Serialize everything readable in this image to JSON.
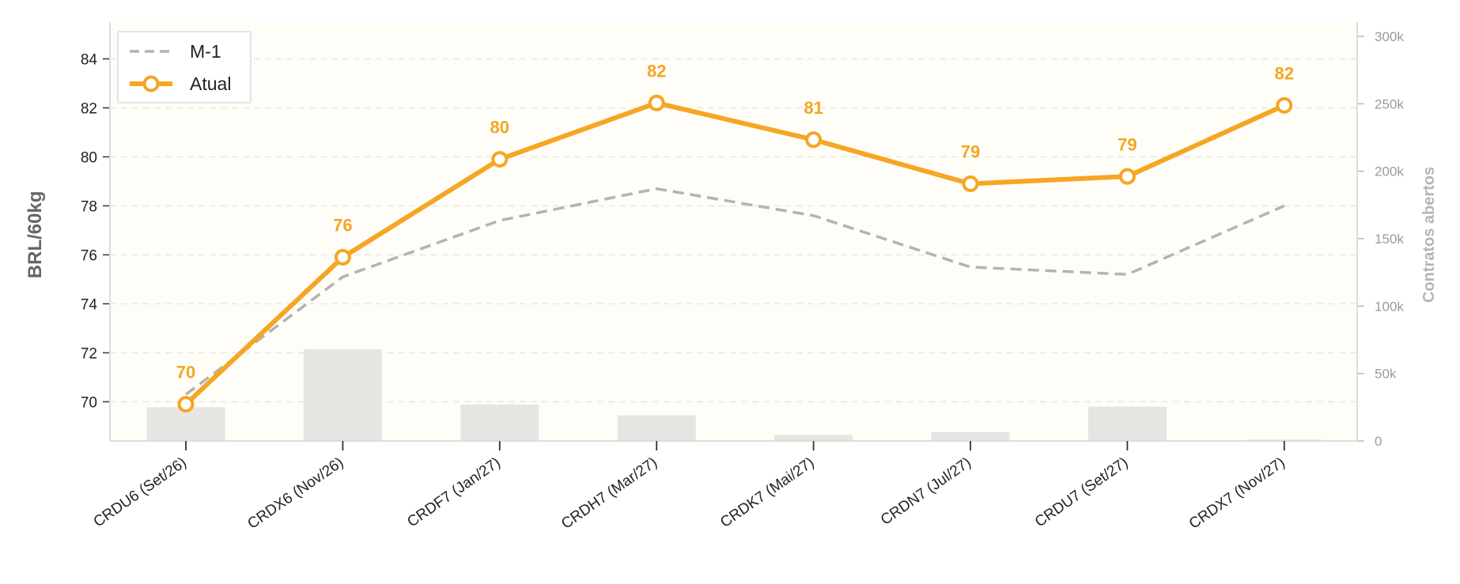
{
  "chart_data": {
    "type": "line",
    "categories": [
      "CRDU6 (Set/26)",
      "CRDX6 (Nov/26)",
      "CRDF7 (Jan/27)",
      "CRDH7 (Mar/27)",
      "CRDK7 (Mai/27)",
      "CRDN7 (Jul/27)",
      "CRDU7 (Set/27)",
      "CRDX7 (Nov/27)"
    ],
    "series": [
      {
        "name": "M-1",
        "type": "line",
        "style": "dashed",
        "color": "#b3b3b3",
        "values": [
          70.3,
          75.1,
          77.4,
          78.7,
          77.6,
          75.5,
          75.2,
          78.0
        ]
      },
      {
        "name": "Atual",
        "type": "line",
        "style": "solid-with-markers",
        "color": "#f5a623",
        "values": [
          69.9,
          75.9,
          79.9,
          82.2,
          80.7,
          78.9,
          79.2,
          82.1
        ],
        "data_labels": [
          "70",
          "76",
          "80",
          "82",
          "81",
          "79",
          "79",
          "82"
        ]
      },
      {
        "name": "Contratos abertos",
        "type": "bar",
        "axis": "right",
        "color": "#e6e5e1",
        "values": [
          25000,
          68000,
          27000,
          19000,
          4500,
          6500,
          25500,
          1000
        ]
      }
    ],
    "ylabel": "BRL/60kg",
    "y2label": "Contratos abertos",
    "ylim": [
      68.4,
      85.5
    ],
    "y2lim": [
      0,
      300000
    ],
    "yticks": [
      "70",
      "72",
      "74",
      "76",
      "78",
      "80",
      "82",
      "84"
    ],
    "y2ticks": [
      "0",
      "50k",
      "100k",
      "150k",
      "200k",
      "250k",
      "300k"
    ],
    "grid": "horizontal dashed",
    "legend_position": "top-left"
  },
  "colors": {
    "accent": "#f5a623",
    "reference": "#b3b3b3",
    "bars": "#e6e5e1",
    "plot_background": "#fefdf8"
  }
}
